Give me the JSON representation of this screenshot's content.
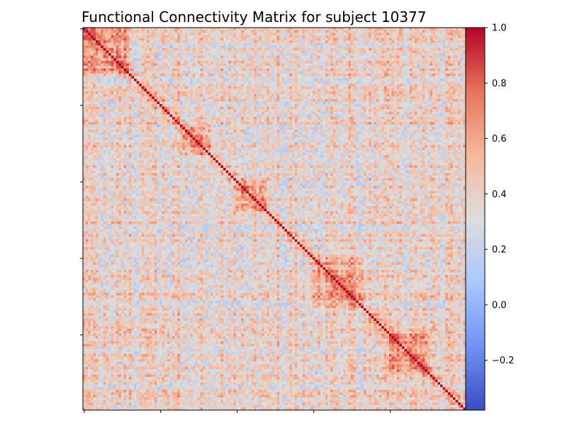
{
  "chart_data": {
    "type": "heatmap",
    "title": "Functional Connectivity Matrix for subject 10377",
    "xlabel": "",
    "ylabel": "",
    "matrix_size": 150,
    "x_tick_labels": [
      "",
      "",
      "",
      "",
      ""
    ],
    "y_tick_labels": [
      "",
      "",
      "",
      "",
      ""
    ],
    "colormap": "coolwarm",
    "colormap_stops": [
      "#3b4cc0",
      "#6f92f3",
      "#aac7fd",
      "#dddddd",
      "#f7b89c",
      "#e7745b",
      "#b40426"
    ],
    "color_range": [
      -0.38,
      1.0
    ],
    "diagonal_value": 1.0,
    "colorbar": {
      "ticks": [
        1.0,
        0.8,
        0.6,
        0.4,
        0.2,
        0.0,
        -0.2
      ],
      "tick_labels": [
        "1.0",
        "0.8",
        "0.6",
        "0.4",
        "0.2",
        "0.0",
        "−0.2"
      ]
    },
    "seed": 10377
  }
}
